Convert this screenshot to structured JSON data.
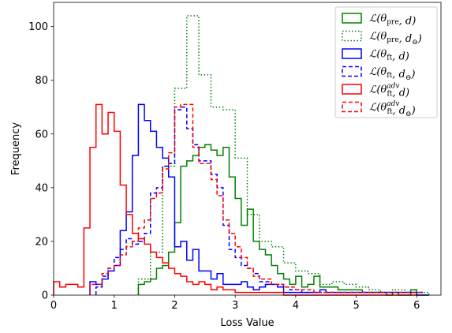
{
  "chart_data": {
    "type": "histogram-step",
    "xlabel": "Loss Value",
    "ylabel": "Frequency",
    "xlim": [
      0,
      6.4
    ],
    "ylim": [
      0,
      109
    ],
    "xticks": [
      "0",
      "1",
      "2",
      "3",
      "4",
      "5",
      "6"
    ],
    "yticks": [
      "0",
      "20",
      "40",
      "60",
      "80",
      "100"
    ],
    "grid": false,
    "legend_position": "top-right",
    "series": [
      {
        "name": "L(θpre, d)",
        "legend": {
          "main": "ℒ(θ",
          "sub": "pre",
          "tail": ", d)"
        },
        "color": "#008000",
        "style": "solid",
        "x": [
          1.4,
          1.5,
          1.6,
          1.7,
          1.8,
          1.9,
          2.0,
          2.1,
          2.2,
          2.3,
          2.4,
          2.5,
          2.6,
          2.7,
          2.8,
          2.9,
          3.0,
          3.1,
          3.2,
          3.3,
          3.4,
          3.5,
          3.6,
          3.7,
          3.8,
          3.9,
          4.0,
          4.1,
          4.2,
          4.3,
          4.4,
          4.5,
          4.6,
          4.7,
          4.8,
          4.9,
          5.0,
          5.1,
          5.2,
          5.3,
          5.4,
          5.5,
          5.6,
          5.7,
          5.8,
          5.9,
          6.0,
          6.1,
          6.2
        ],
        "values": [
          4,
          5,
          6,
          10,
          11,
          16,
          27,
          48,
          50,
          52,
          55,
          56,
          54,
          52,
          55,
          44,
          36,
          26,
          32,
          20,
          17,
          15,
          11,
          8,
          6,
          4,
          7,
          3,
          4,
          7,
          3,
          3,
          3,
          2,
          2,
          2,
          2,
          1,
          1,
          1,
          1,
          0,
          1,
          0,
          0,
          2,
          0,
          0
        ]
      },
      {
        "name": "L(θpre, d⊖)",
        "legend": {
          "main": "ℒ(θ",
          "sub": "pre",
          "tail": ", d",
          "tailsub": "⊖",
          "end": ")"
        },
        "color": "#008000",
        "style": "dotted",
        "x": [
          1.4,
          1.6,
          1.8,
          2.0,
          2.2,
          2.4,
          2.6,
          2.8,
          3.0,
          3.2,
          3.4,
          3.6,
          3.8,
          4.0,
          4.2,
          4.4,
          4.6,
          4.8,
          5.0,
          5.2,
          5.4,
          5.6,
          5.8,
          6.0,
          6.2
        ],
        "values": [
          6,
          16,
          48,
          77,
          104,
          82,
          70,
          69,
          51,
          30,
          20,
          18,
          12,
          9,
          8,
          4,
          5,
          4,
          3,
          2,
          1,
          2,
          1,
          1
        ]
      },
      {
        "name": "L(θft, d)",
        "legend": {
          "main": "ℒ(θ",
          "sub": "ft",
          "tail": ", d)"
        },
        "color": "#0000ff",
        "style": "solid",
        "x": [
          0.6,
          0.7,
          0.8,
          0.9,
          1.0,
          1.1,
          1.2,
          1.3,
          1.4,
          1.5,
          1.6,
          1.7,
          1.8,
          1.9,
          2.0,
          2.1,
          2.2,
          2.3,
          2.4,
          2.5,
          2.6,
          2.7,
          2.8,
          2.9,
          3.0,
          3.1,
          3.2,
          3.3,
          3.4,
          3.5,
          3.6,
          3.7,
          3.8,
          3.9,
          4.0,
          4.1,
          4.2,
          4.3,
          4.4,
          4.5,
          4.6,
          4.7,
          4.8,
          4.9,
          5.0,
          5.1,
          5.2,
          5.3,
          5.4,
          5.5,
          5.6,
          5.7,
          5.8,
          5.9,
          6.0,
          6.1,
          6.2
        ],
        "values": [
          5,
          4,
          6,
          9,
          11,
          24,
          31,
          52,
          71,
          65,
          61,
          55,
          51,
          44,
          18,
          20,
          13,
          17,
          9,
          9,
          6,
          8,
          4,
          4,
          4,
          5,
          3,
          2,
          3,
          4,
          4,
          3,
          1,
          1,
          1,
          1,
          1,
          1,
          2,
          1,
          1,
          1,
          1,
          1,
          1,
          1,
          1,
          1,
          1,
          1,
          1,
          1,
          1,
          1,
          0,
          0
        ]
      },
      {
        "name": "L(θft, d⊖)",
        "legend": {
          "main": "ℒ(θ",
          "sub": "ft",
          "tail": ", d",
          "tailsub": "⊖",
          "end": ")"
        },
        "color": "#0000ff",
        "style": "dashed",
        "x": [
          0.7,
          0.8,
          0.9,
          1.0,
          1.1,
          1.2,
          1.3,
          1.4,
          1.5,
          1.6,
          1.7,
          1.8,
          1.9,
          2.0,
          2.1,
          2.2,
          2.3,
          2.4,
          2.5,
          2.6,
          2.7,
          2.8,
          2.9,
          3.0,
          3.1,
          3.2,
          3.3,
          3.4,
          3.5,
          3.6,
          3.7,
          3.8,
          3.9,
          4.0,
          4.1,
          4.2,
          4.3,
          4.4,
          4.5,
          4.6,
          4.7,
          4.8,
          4.9,
          5.0,
          5.1,
          5.2,
          5.3,
          5.4,
          5.5,
          5.6,
          5.7,
          5.8,
          5.9,
          6.0,
          6.1
        ],
        "values": [
          3,
          7,
          10,
          14,
          17,
          21,
          19,
          20,
          23,
          38,
          40,
          48,
          49,
          69,
          70,
          62,
          56,
          50,
          50,
          45,
          40,
          26,
          17,
          14,
          11,
          10,
          8,
          5,
          5,
          4,
          4,
          3,
          2,
          2,
          1,
          1,
          1,
          1,
          1,
          1,
          1,
          1,
          1,
          1,
          1,
          1,
          1,
          1,
          1,
          1,
          1,
          1,
          1,
          1
        ]
      },
      {
        "name": "L(θft^adv, d)",
        "legend": {
          "main": "ℒ(θ",
          "sub": "ft",
          "sup": "adv",
          "tail": ", d)"
        },
        "color": "#ff0000",
        "style": "solid",
        "x": [
          0.0,
          0.1,
          0.2,
          0.3,
          0.4,
          0.5,
          0.6,
          0.7,
          0.8,
          0.9,
          1.0,
          1.1,
          1.2,
          1.3,
          1.4,
          1.5,
          1.6,
          1.7,
          1.8,
          1.9,
          2.0,
          2.1,
          2.2,
          2.3,
          2.4,
          2.5,
          2.6,
          2.7,
          2.8,
          2.9,
          3.0,
          3.1,
          3.2,
          3.3,
          3.4,
          3.5,
          3.6,
          3.7,
          3.8,
          3.9,
          4.0,
          4.1,
          4.2,
          4.3,
          4.4,
          4.5,
          4.6,
          4.7,
          4.8,
          4.9,
          5.0,
          5.1,
          5.2,
          5.3,
          5.4,
          5.5,
          5.6,
          5.7,
          5.8,
          5.9,
          6.0
        ],
        "values": [
          5,
          3,
          4,
          4,
          3,
          25,
          55,
          71,
          60,
          68,
          61,
          41,
          30,
          23,
          21,
          19,
          16,
          14,
          12,
          10,
          8,
          7,
          5,
          4,
          5,
          4,
          2,
          3,
          2,
          2,
          1,
          1,
          1,
          1,
          1,
          1,
          1,
          1,
          0,
          0,
          0,
          0,
          0,
          0,
          0,
          0,
          0,
          0,
          0,
          0,
          0,
          0,
          0,
          0,
          0,
          0,
          0,
          0,
          0,
          0
        ]
      },
      {
        "name": "L(θft^adv, d⊖)",
        "legend": {
          "main": "ℒ(θ",
          "sub": "ft",
          "sup": "adv",
          "tail": ", d",
          "tailsub": "⊖",
          "end": ")"
        },
        "color": "#ff0000",
        "style": "dashed",
        "x": [
          0.6,
          0.7,
          0.8,
          0.9,
          1.0,
          1.1,
          1.2,
          1.3,
          1.4,
          1.5,
          1.6,
          1.7,
          1.8,
          1.9,
          2.0,
          2.1,
          2.2,
          2.3,
          2.4,
          2.5,
          2.6,
          2.7,
          2.8,
          2.9,
          3.0,
          3.1,
          3.2,
          3.3,
          3.4,
          3.5,
          3.6,
          3.7,
          3.8,
          3.9,
          4.0,
          4.1,
          4.2,
          4.3,
          4.4,
          4.5,
          4.6,
          4.7,
          4.8,
          4.9,
          5.0,
          5.1,
          5.2,
          5.3,
          5.4,
          5.5,
          5.6,
          5.7,
          5.8,
          5.9,
          6.0,
          6.1
        ],
        "values": [
          4,
          4,
          8,
          10,
          11,
          15,
          18,
          20,
          25,
          28,
          36,
          38,
          47,
          53,
          70,
          71,
          71,
          55,
          49,
          49,
          43,
          37,
          28,
          23,
          18,
          14,
          10,
          7,
          6,
          6,
          4,
          4,
          3,
          3,
          2,
          2,
          2,
          1,
          1,
          1,
          1,
          1,
          1,
          1,
          1,
          1,
          1,
          1,
          1,
          1,
          1,
          1,
          1,
          1,
          1
        ]
      }
    ]
  }
}
